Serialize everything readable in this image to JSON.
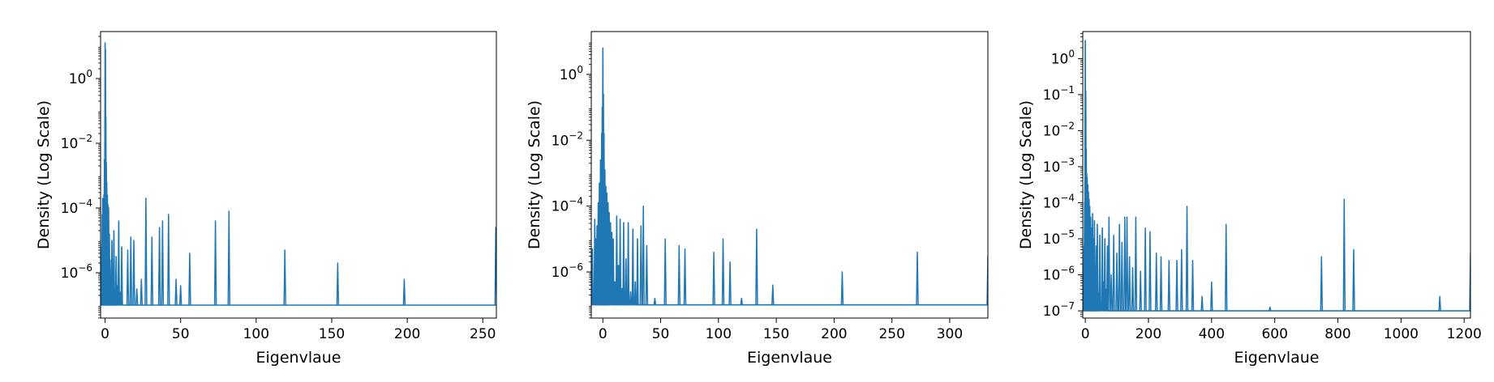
{
  "chart_data": [
    {
      "type": "line",
      "title": "",
      "xlabel": "Eigenvlaue",
      "ylabel": "Density (Log Scale)",
      "yscale": "log",
      "xlim": [
        -3,
        259
      ],
      "ylim_log10": [
        -7.4,
        1.45
      ],
      "grid": false,
      "color": "#1f77b4",
      "x_ticks": [
        0,
        50,
        100,
        150,
        200,
        250
      ],
      "y_ticks": [
        {
          "exp": 0,
          "label": "10",
          "sup": "0"
        },
        {
          "exp": -2,
          "label": "10",
          "sup": "−2"
        },
        {
          "exp": -4,
          "label": "10",
          "sup": "−4"
        },
        {
          "exp": -6,
          "label": "10",
          "sup": "−6"
        }
      ],
      "baseline_log10": -7,
      "bulk_peaks": [
        [
          -2.5,
          -6.3
        ],
        [
          -2.2,
          -5.2
        ],
        [
          -1.9,
          -4.2
        ],
        [
          -1.6,
          -3.7
        ],
        [
          -1.2,
          -3.9
        ],
        [
          -0.8,
          -3.6
        ],
        [
          -0.4,
          -2.5
        ],
        [
          0,
          1.1
        ],
        [
          0.2,
          0.9
        ],
        [
          0.5,
          -1.2
        ],
        [
          0.8,
          -2.6
        ],
        [
          1.1,
          -3.2
        ],
        [
          1.5,
          -3.6
        ],
        [
          1.9,
          -3.9
        ],
        [
          2.3,
          -4.0
        ],
        [
          2.8,
          -4.8
        ],
        [
          3.3,
          -5.6
        ],
        [
          3.9,
          -6.4
        ],
        [
          4.5,
          -5.0
        ],
        [
          5.1,
          -6.5
        ],
        [
          5.8,
          -4.7
        ],
        [
          6.5,
          -6.6
        ],
        [
          7.3,
          -5.5
        ],
        [
          8.2,
          -6.4
        ],
        [
          9.0,
          -4.4
        ],
        [
          10.0,
          -6.6
        ],
        [
          11.0,
          -5.2
        ]
      ],
      "x": [
        15,
        17,
        19,
        21,
        24,
        27,
        31,
        36,
        38,
        42,
        47,
        50,
        56,
        73,
        82,
        119,
        154,
        198,
        258.6
      ],
      "y_log10": [
        -5.3,
        -4.9,
        -5.0,
        -6.5,
        -6.2,
        -3.7,
        -4.9,
        -4.6,
        -4.4,
        -4.2,
        -6.2,
        -6.4,
        -5.4,
        -4.4,
        -4.1,
        -5.3,
        -5.7,
        -6.2,
        -4.6
      ]
    },
    {
      "type": "line",
      "title": "",
      "xlabel": "Eigenvlaue",
      "ylabel": "Density (Log Scale)",
      "yscale": "log",
      "xlim": [
        -10,
        333
      ],
      "ylim_log10": [
        -7.4,
        1.3
      ],
      "grid": false,
      "color": "#1f77b4",
      "x_ticks": [
        0,
        50,
        100,
        150,
        200,
        250,
        300
      ],
      "y_ticks": [
        {
          "exp": 0,
          "label": "10",
          "sup": "0"
        },
        {
          "exp": -2,
          "label": "10",
          "sup": "−2"
        },
        {
          "exp": -4,
          "label": "10",
          "sup": "−4"
        },
        {
          "exp": -6,
          "label": "10",
          "sup": "−6"
        }
      ],
      "baseline_log10": -7,
      "bulk_peaks": [
        [
          -9,
          -5.3
        ],
        [
          -8,
          -6.8
        ],
        [
          -7,
          -4.4
        ],
        [
          -6,
          -5.0
        ],
        [
          -5,
          -4.6
        ],
        [
          -4,
          -3.9
        ],
        [
          -3,
          -3.3
        ],
        [
          -2,
          -2.6
        ],
        [
          -1,
          -1.8
        ],
        [
          -0.5,
          -1.0
        ],
        [
          0,
          0.8
        ],
        [
          0.5,
          -0.6
        ],
        [
          1,
          -1.8
        ],
        [
          1.8,
          -2.9
        ],
        [
          2.6,
          -3.4
        ],
        [
          3.5,
          -3.6
        ],
        [
          4.5,
          -3.9
        ],
        [
          5.5,
          -4.2
        ],
        [
          6.6,
          -4.5
        ],
        [
          7.8,
          -4.8
        ],
        [
          9,
          -5.0
        ],
        [
          10.5,
          -6.3
        ],
        [
          12,
          -4.3
        ],
        [
          13.5,
          -5.8
        ],
        [
          15,
          -4.4
        ],
        [
          16.5,
          -6.5
        ],
        [
          18,
          -4.5
        ],
        [
          20,
          -5.6
        ],
        [
          22,
          -4.5
        ],
        [
          24,
          -6.6
        ],
        [
          26,
          -4.7
        ],
        [
          28,
          -6.3
        ],
        [
          30,
          -5.0
        ]
      ],
      "x": [
        33,
        35,
        38,
        45,
        54,
        66,
        71,
        96,
        104,
        110,
        120,
        133,
        147,
        207,
        272,
        333
      ],
      "y_log10": [
        -4.6,
        -4.0,
        -5.2,
        -6.8,
        -5.0,
        -5.2,
        -5.3,
        -5.4,
        -5.0,
        -5.7,
        -6.8,
        -4.7,
        -6.4,
        -6.0,
        -5.4,
        -5.5
      ]
    },
    {
      "type": "line",
      "title": "",
      "xlabel": "Eigenvlaue",
      "ylabel": "Density (Log Scale)",
      "yscale": "log",
      "xlim": [
        -8,
        1220
      ],
      "ylim_log10": [
        -7.2,
        0.75
      ],
      "grid": false,
      "color": "#1f77b4",
      "x_ticks": [
        0,
        200,
        400,
        600,
        800,
        1000,
        1200
      ],
      "y_ticks": [
        {
          "exp": 0,
          "label": "10",
          "sup": "0"
        },
        {
          "exp": -1,
          "label": "10",
          "sup": "−1"
        },
        {
          "exp": -2,
          "label": "10",
          "sup": "−2"
        },
        {
          "exp": -3,
          "label": "10",
          "sup": "−3"
        },
        {
          "exp": -4,
          "label": "10",
          "sup": "−4"
        },
        {
          "exp": -5,
          "label": "10",
          "sup": "−5"
        },
        {
          "exp": -6,
          "label": "10",
          "sup": "−6"
        },
        {
          "exp": -7,
          "label": "10",
          "sup": "−7"
        }
      ],
      "baseline_log10": -7,
      "bulk_peaks": [
        [
          -6,
          -6.8
        ],
        [
          -4,
          -5.2
        ],
        [
          -2,
          -4.0
        ],
        [
          0,
          0.5
        ],
        [
          1.5,
          -0.9
        ],
        [
          3,
          -2.5
        ],
        [
          4.5,
          -3.2
        ],
        [
          6,
          -3.3
        ],
        [
          8,
          -3.5
        ],
        [
          10,
          -3.7
        ],
        [
          12,
          -3.9
        ],
        [
          14,
          -4.1
        ],
        [
          17,
          -4.4
        ],
        [
          20,
          -4.7
        ],
        [
          23,
          -4.3
        ],
        [
          26,
          -5.0
        ],
        [
          29,
          -4.5
        ],
        [
          32,
          -6.2
        ],
        [
          35,
          -5.2
        ],
        [
          38,
          -4.6
        ],
        [
          42,
          -6.5
        ],
        [
          46,
          -4.9
        ],
        [
          50,
          -6.8
        ],
        [
          54,
          -4.7
        ],
        [
          58,
          -6.2
        ],
        [
          62,
          -5.0
        ],
        [
          66,
          -6.4
        ],
        [
          70,
          -5.2
        ]
      ],
      "x": [
        75,
        82,
        90,
        100,
        108,
        116,
        125,
        132,
        140,
        150,
        160,
        175,
        190,
        205,
        225,
        240,
        265,
        290,
        305,
        322,
        340,
        370,
        400,
        446,
        585,
        748,
        820,
        850,
        1123,
        1220
      ],
      "y_log10": [
        -4.4,
        -6.0,
        -4.9,
        -5.4,
        -4.6,
        -5.1,
        -4.4,
        -4.4,
        -5.5,
        -5.8,
        -4.4,
        -5.9,
        -4.7,
        -4.8,
        -5.4,
        -5.5,
        -5.6,
        -5.6,
        -5.3,
        -4.1,
        -5.6,
        -6.6,
        -6.2,
        -4.6,
        -6.9,
        -5.5,
        -3.9,
        -5.3,
        -6.6,
        -5.4
      ]
    }
  ]
}
